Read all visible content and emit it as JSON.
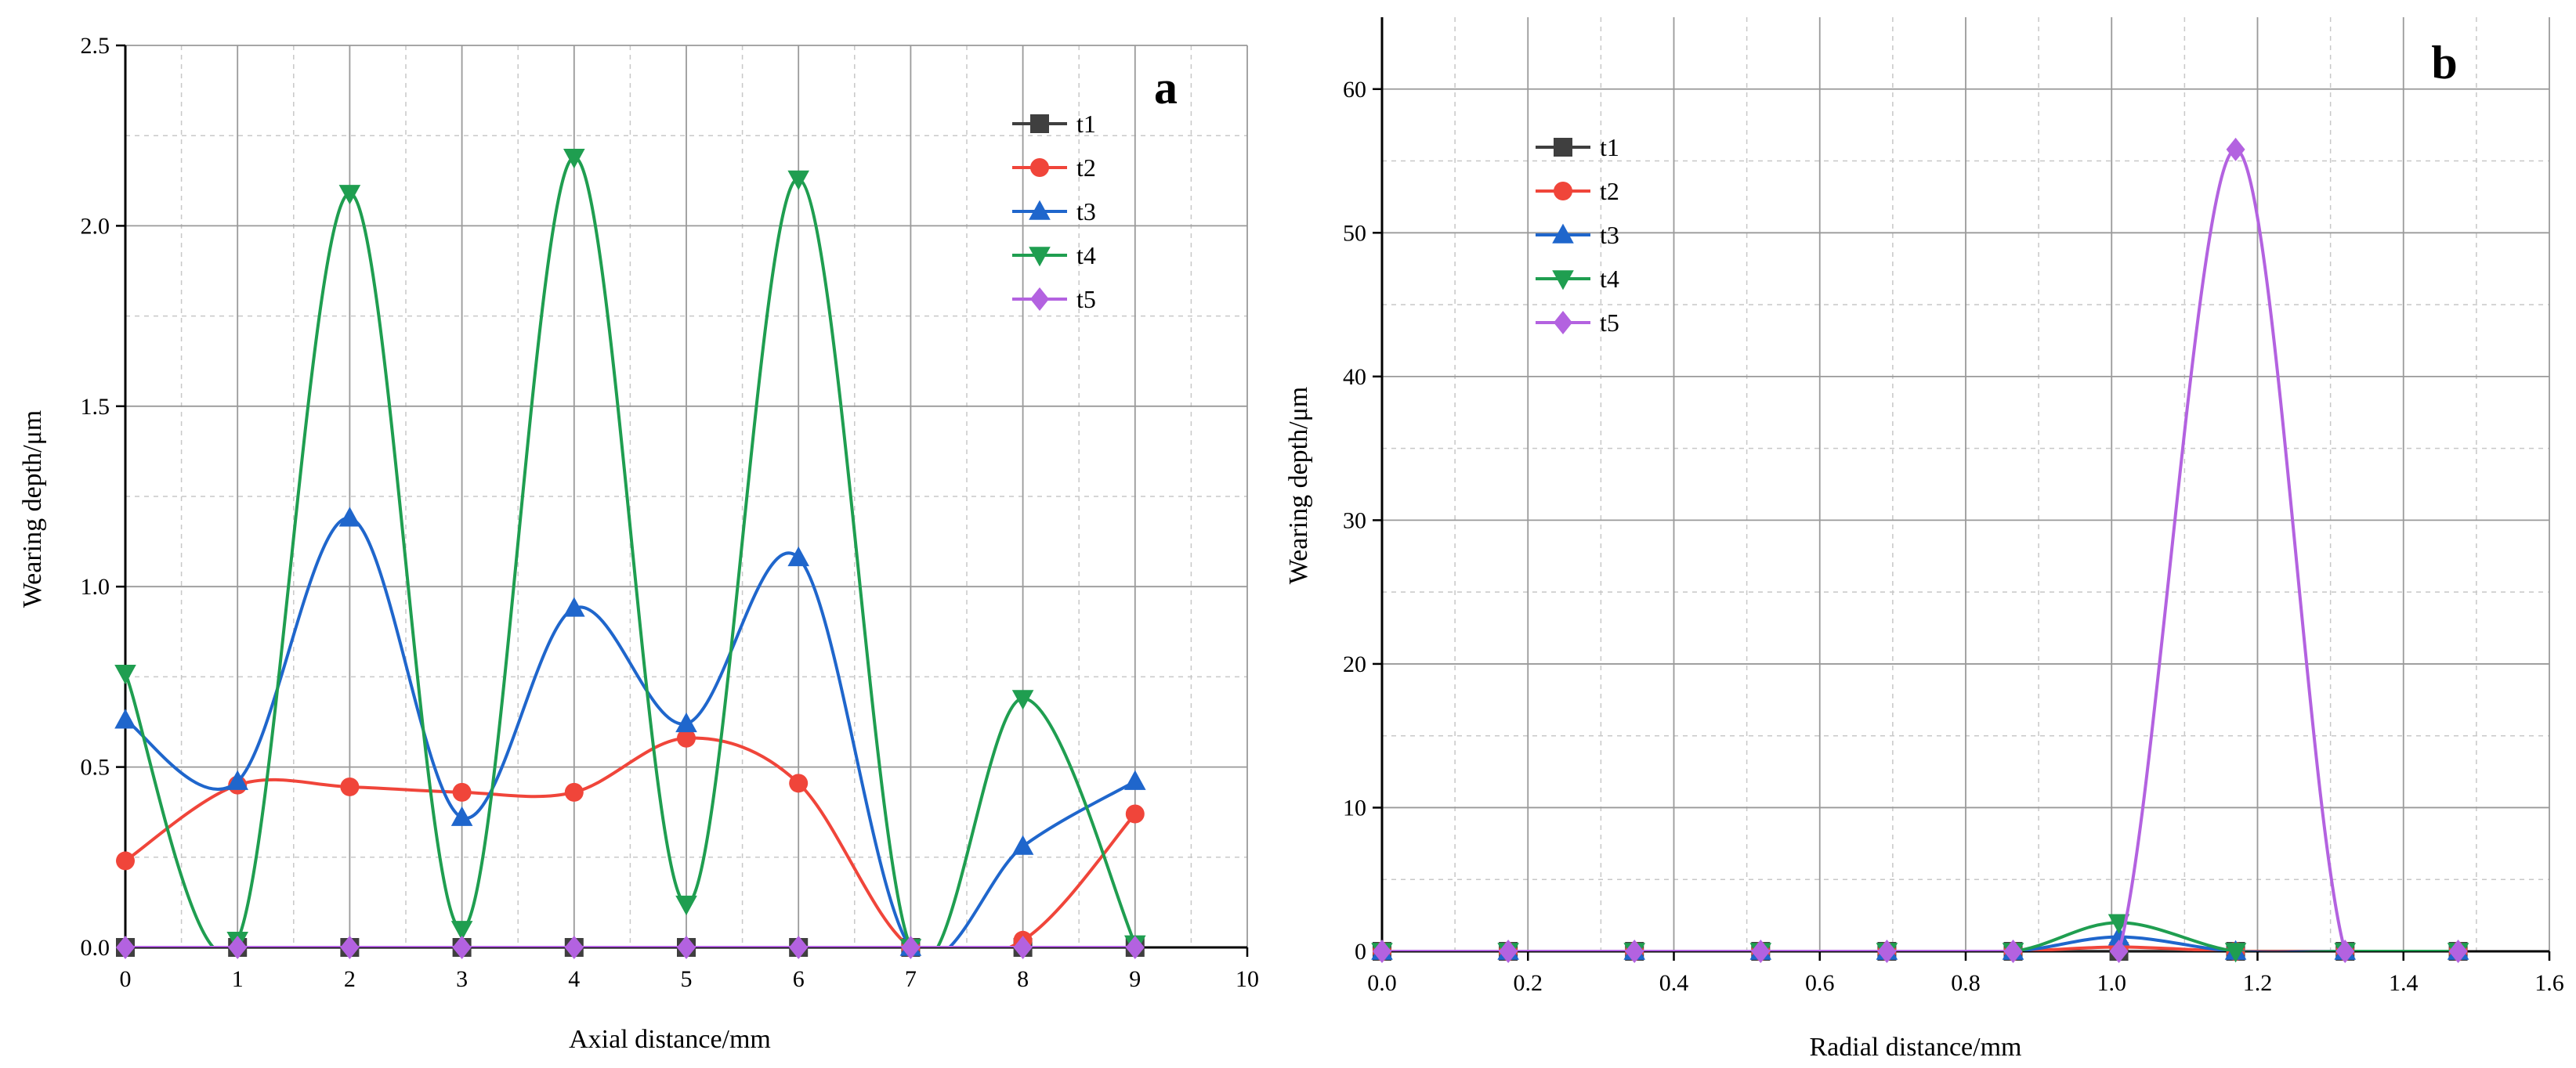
{
  "chart_data": [
    {
      "panel": "a",
      "type": "line",
      "xlabel": "Axial distance/mm",
      "ylabel": "Wearing depth/μm",
      "xlim": [
        0,
        10
      ],
      "ylim": [
        0,
        2.5
      ],
      "xticks": [
        "0",
        "1",
        "2",
        "3",
        "4",
        "5",
        "6",
        "7",
        "8",
        "9",
        "10"
      ],
      "yticks": [
        "0.0",
        "0.5",
        "1.0",
        "1.5",
        "2.0",
        "2.5"
      ],
      "grid": true,
      "legend_position": "top-right",
      "x": [
        0,
        1,
        2,
        3,
        4,
        5,
        6,
        7,
        8,
        9
      ],
      "series": [
        {
          "name": "t1",
          "color": "#3f3f3f",
          "marker": "square",
          "values": [
            0,
            0,
            0,
            0,
            0,
            0,
            0,
            0,
            0,
            0
          ]
        },
        {
          "name": "t2",
          "color": "#f0453a",
          "marker": "circle",
          "values": [
            0.24,
            0.45,
            0.445,
            0.43,
            0.43,
            0.58,
            0.455,
            0,
            0.02,
            0.37
          ]
        },
        {
          "name": "t3",
          "color": "#1f66cc",
          "marker": "triangle-up",
          "values": [
            0.63,
            0.46,
            1.19,
            0.36,
            0.94,
            0.62,
            1.08,
            0,
            0.28,
            0.46
          ]
        },
        {
          "name": "t4",
          "color": "#1f9e50",
          "marker": "triangle-down",
          "values": [
            0.76,
            0.02,
            2.09,
            0.05,
            2.19,
            0.12,
            2.13,
            0,
            0.69,
            0.01
          ]
        },
        {
          "name": "t5",
          "color": "#b362e0",
          "marker": "diamond",
          "values": [
            0,
            0,
            0,
            0,
            0,
            0,
            0,
            0,
            0,
            0
          ]
        }
      ]
    },
    {
      "panel": "b",
      "type": "line",
      "xlabel": "Radial distance/mm",
      "ylabel": "Wearing depth/μm",
      "xlim": [
        0,
        1.6
      ],
      "ylim": [
        0,
        65
      ],
      "xticks": [
        "0.0",
        "0.2",
        "0.4",
        "0.6",
        "0.8",
        "1.0",
        "1.2",
        "1.4",
        "1.6"
      ],
      "yticks": [
        "0",
        "10",
        "20",
        "30",
        "40",
        "50",
        "60"
      ],
      "grid": true,
      "legend_position": "top-left",
      "x": [
        0,
        0.173,
        0.346,
        0.519,
        0.692,
        0.865,
        1.01,
        1.17,
        1.32,
        1.475
      ],
      "series": [
        {
          "name": "t1",
          "color": "#3f3f3f",
          "marker": "square",
          "values": [
            0,
            0,
            0,
            0,
            0,
            0,
            0,
            0,
            0,
            0
          ]
        },
        {
          "name": "t2",
          "color": "#f0453a",
          "marker": "circle",
          "values": [
            0,
            0,
            0,
            0,
            0,
            0,
            0.3,
            0,
            0,
            0
          ]
        },
        {
          "name": "t3",
          "color": "#1f66cc",
          "marker": "triangle-up",
          "values": [
            0,
            0,
            0,
            0,
            0,
            0,
            1.0,
            0,
            0,
            0
          ]
        },
        {
          "name": "t4",
          "color": "#1f9e50",
          "marker": "triangle-down",
          "values": [
            0,
            0,
            0,
            0,
            0,
            0,
            2.0,
            0,
            0,
            0
          ]
        },
        {
          "name": "t5",
          "color": "#b362e0",
          "marker": "diamond",
          "values": [
            0,
            0,
            0,
            0,
            0,
            0,
            0,
            55.8,
            0,
            0
          ]
        }
      ]
    }
  ]
}
